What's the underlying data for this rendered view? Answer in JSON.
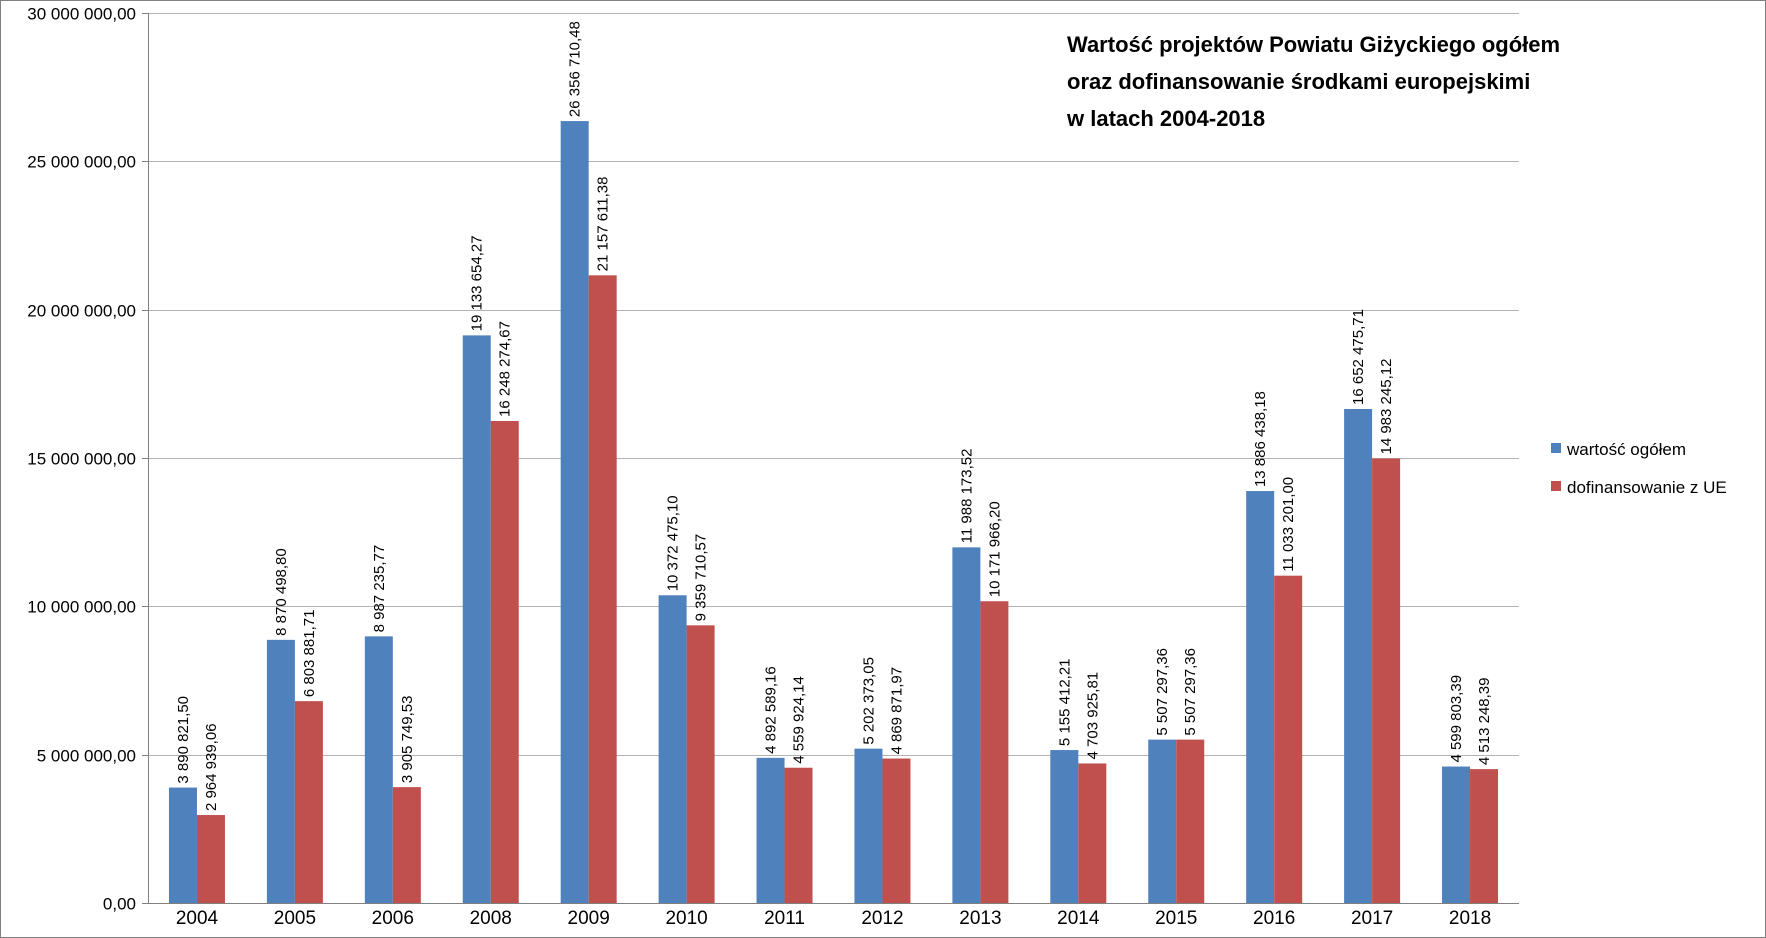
{
  "chart_data": {
    "type": "bar",
    "title_lines": [
      "Wartość projektów Powiatu Giżyckiego ogółem",
      "oraz dofinansowanie środkami europejskimi",
      "w latach 2004-2018"
    ],
    "categories": [
      "2004",
      "2005",
      "2006",
      "2008",
      "2009",
      "2010",
      "2011",
      "2012",
      "2013",
      "2014",
      "2015",
      "2016",
      "2017",
      "2018"
    ],
    "series": [
      {
        "name": "wartość ogółem",
        "color": "#4f81bd",
        "values": [
          3890821.5,
          8870498.8,
          8987235.77,
          19133654.27,
          26356710.48,
          10372475.1,
          4892589.16,
          5202373.05,
          11988173.52,
          5155412.21,
          5507297.36,
          13886438.18,
          16652475.71,
          4599803.39
        ],
        "labels": [
          "3 890 821,50",
          "8 870 498,80",
          "8 987 235,77",
          "19 133 654,27",
          "26 356 710,48",
          "10 372 475,10",
          "4 892 589,16",
          "5 202 373,05",
          "11 988 173,52",
          "5 155 412,21",
          "5 507 297,36",
          "13 886 438,18",
          "16 652 475,71",
          "4 599 803,39"
        ]
      },
      {
        "name": "dofinansowanie z UE",
        "color": "#c0504d",
        "values": [
          2964939.06,
          6803881.71,
          3905749.53,
          16248274.67,
          21157611.38,
          9359710.57,
          4559924.14,
          4869871.97,
          10171966.2,
          4703925.81,
          5507297.36,
          11033201.0,
          14983245.12,
          4513248.39
        ],
        "labels": [
          "2 964 939,06",
          "6 803 881,71",
          "3 905 749,53",
          "16 248 274,67",
          "21 157 611,38",
          "9 359 710,57",
          "4 559 924,14",
          "4 869 871,97",
          "10 171 966,20",
          "4 703 925,81",
          "5 507 297,36",
          "11 033 201,00",
          "14 983 245,12",
          "4 513 248,39"
        ]
      }
    ],
    "ylim": [
      0,
      30000000
    ],
    "yticks": [
      0,
      5000000,
      10000000,
      15000000,
      20000000,
      25000000,
      30000000
    ],
    "ytick_labels": [
      "0,00",
      "5 000 000,00",
      "10 000 000,00",
      "15 000 000,00",
      "20 000 000,00",
      "25 000 000,00",
      "30 000 000,00"
    ],
    "grid": true,
    "legend_position": "right"
  }
}
